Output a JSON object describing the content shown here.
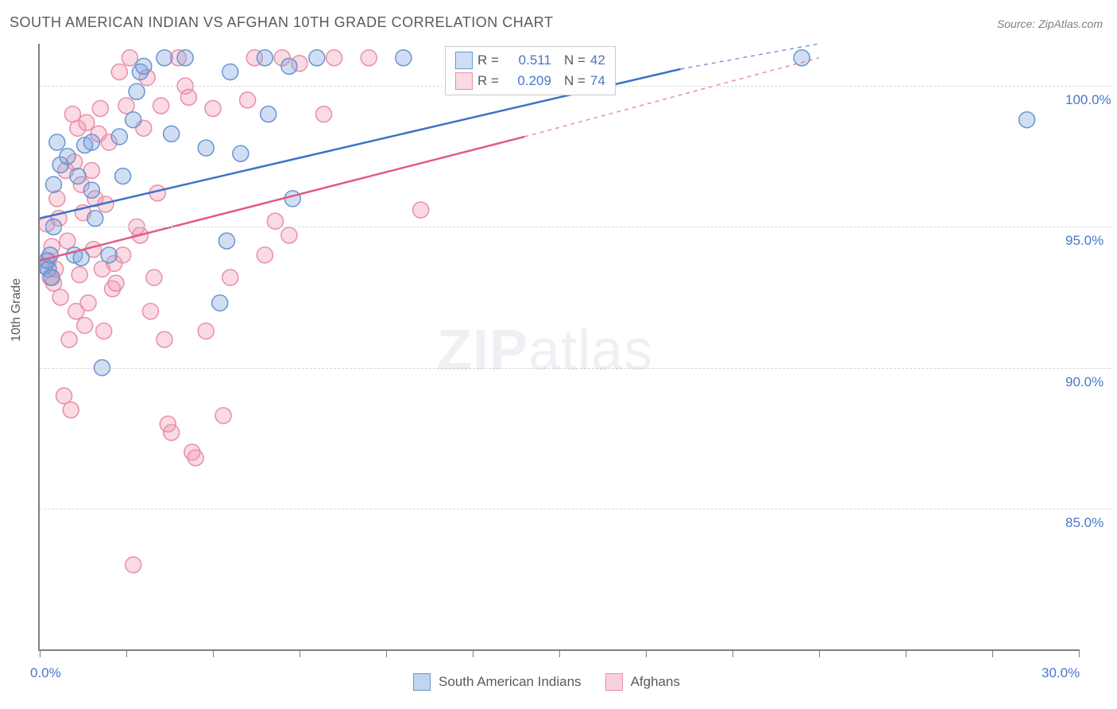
{
  "chart": {
    "type": "scatter",
    "title": "SOUTH AMERICAN INDIAN VS AFGHAN 10TH GRADE CORRELATION CHART",
    "source": "Source: ZipAtlas.com",
    "ylabel": "10th Grade",
    "watermark": {
      "zip": "ZIP",
      "atlas": "atlas"
    },
    "background_color": "#ffffff",
    "axis_color": "#808080",
    "grid_color": "#d8d8d8",
    "label_color": "#5a5a5a",
    "tick_label_color": "#4a76c7",
    "xlim": [
      0,
      30
    ],
    "ylim": [
      80,
      101.5
    ],
    "xticks": [
      0,
      2.5,
      5,
      7.5,
      10,
      12.5,
      15,
      17.5,
      20,
      22.5,
      25,
      27.5,
      30
    ],
    "xtick_labels": {
      "0": "0.0%",
      "30": "30.0%"
    },
    "yticks": [
      85,
      90,
      95,
      100
    ],
    "ytick_labels": {
      "85": "85.0%",
      "90": "90.0%",
      "95": "95.0%",
      "100": "100.0%"
    },
    "marker_radius": 10,
    "series": [
      {
        "name": "South American Indians",
        "fill_color": "rgba(120,160,220,0.35)",
        "stroke_color": "#6b94cf",
        "line_color": "#3b74c5",
        "line_width": 2.5,
        "R": "0.511",
        "N": "42",
        "trend": {
          "x1": 0,
          "y1": 95.3,
          "x2_solid": 18.5,
          "y2_solid": 100.6,
          "x2_dash": 22.5,
          "y2_dash": 101.5
        },
        "points": [
          [
            0.15,
            93.6
          ],
          [
            0.2,
            93.8
          ],
          [
            0.25,
            93.5
          ],
          [
            0.3,
            94.0
          ],
          [
            0.35,
            93.2
          ],
          [
            0.4,
            95.0
          ],
          [
            0.6,
            97.2
          ],
          [
            0.8,
            97.5
          ],
          [
            0.5,
            98.0
          ],
          [
            0.4,
            96.5
          ],
          [
            1.0,
            94.0
          ],
          [
            1.1,
            96.8
          ],
          [
            1.3,
            97.9
          ],
          [
            1.5,
            98.0
          ],
          [
            1.5,
            96.3
          ],
          [
            1.2,
            93.9
          ],
          [
            1.6,
            95.3
          ],
          [
            1.8,
            90.0
          ],
          [
            2.0,
            94.0
          ],
          [
            2.3,
            98.2
          ],
          [
            2.4,
            96.8
          ],
          [
            2.7,
            98.8
          ],
          [
            2.8,
            99.8
          ],
          [
            2.9,
            100.5
          ],
          [
            3.0,
            100.7
          ],
          [
            3.6,
            101.0
          ],
          [
            3.8,
            98.3
          ],
          [
            4.2,
            101.0
          ],
          [
            4.8,
            97.8
          ],
          [
            5.2,
            92.3
          ],
          [
            5.4,
            94.5
          ],
          [
            5.5,
            100.5
          ],
          [
            5.8,
            97.6
          ],
          [
            6.5,
            101.0
          ],
          [
            6.6,
            99.0
          ],
          [
            7.2,
            100.7
          ],
          [
            7.3,
            96.0
          ],
          [
            8.0,
            101.0
          ],
          [
            10.5,
            101.0
          ],
          [
            13.5,
            101.0
          ],
          [
            22.0,
            101.0
          ],
          [
            28.5,
            98.8
          ]
        ]
      },
      {
        "name": "Afghans",
        "fill_color": "rgba(240,150,175,0.35)",
        "stroke_color": "#e88fa8",
        "line_color": "#e15a87",
        "line_width": 2.5,
        "R": "0.209",
        "N": "74",
        "trend": {
          "x1": 0,
          "y1": 93.8,
          "x2_solid": 14.0,
          "y2_solid": 98.2,
          "x2_dash": 22.5,
          "y2_dash": 101.0
        },
        "points": [
          [
            0.2,
            95.1
          ],
          [
            0.25,
            93.8
          ],
          [
            0.3,
            93.2
          ],
          [
            0.35,
            94.3
          ],
          [
            0.4,
            93.0
          ],
          [
            0.45,
            93.5
          ],
          [
            0.5,
            96.0
          ],
          [
            0.55,
            95.3
          ],
          [
            0.6,
            92.5
          ],
          [
            0.7,
            89.0
          ],
          [
            0.75,
            97.0
          ],
          [
            0.8,
            94.5
          ],
          [
            0.85,
            91.0
          ],
          [
            0.9,
            88.5
          ],
          [
            0.95,
            99.0
          ],
          [
            1.0,
            97.3
          ],
          [
            1.05,
            92.0
          ],
          [
            1.1,
            98.5
          ],
          [
            1.15,
            93.3
          ],
          [
            1.2,
            96.5
          ],
          [
            1.25,
            95.5
          ],
          [
            1.3,
            91.5
          ],
          [
            1.35,
            98.7
          ],
          [
            1.4,
            92.3
          ],
          [
            1.5,
            97.0
          ],
          [
            1.55,
            94.2
          ],
          [
            1.6,
            96.0
          ],
          [
            1.7,
            98.3
          ],
          [
            1.75,
            99.2
          ],
          [
            1.8,
            93.5
          ],
          [
            1.85,
            91.3
          ],
          [
            1.9,
            95.8
          ],
          [
            2.0,
            98.0
          ],
          [
            2.1,
            92.8
          ],
          [
            2.15,
            93.7
          ],
          [
            2.2,
            93.0
          ],
          [
            2.3,
            100.5
          ],
          [
            2.4,
            94.0
          ],
          [
            2.5,
            99.3
          ],
          [
            2.6,
            101.0
          ],
          [
            2.7,
            83.0
          ],
          [
            2.8,
            95.0
          ],
          [
            2.9,
            94.7
          ],
          [
            3.0,
            98.5
          ],
          [
            3.1,
            100.3
          ],
          [
            3.2,
            92.0
          ],
          [
            3.3,
            93.2
          ],
          [
            3.4,
            96.2
          ],
          [
            3.5,
            99.3
          ],
          [
            3.6,
            91.0
          ],
          [
            3.7,
            88.0
          ],
          [
            3.8,
            87.7
          ],
          [
            4.0,
            101.0
          ],
          [
            4.2,
            100.0
          ],
          [
            4.3,
            99.6
          ],
          [
            4.4,
            87.0
          ],
          [
            4.5,
            86.8
          ],
          [
            4.8,
            91.3
          ],
          [
            5.0,
            99.2
          ],
          [
            5.3,
            88.3
          ],
          [
            5.5,
            93.2
          ],
          [
            6.0,
            99.5
          ],
          [
            6.2,
            101.0
          ],
          [
            6.5,
            94.0
          ],
          [
            6.8,
            95.2
          ],
          [
            7.0,
            101.0
          ],
          [
            7.2,
            94.7
          ],
          [
            7.5,
            100.8
          ],
          [
            8.2,
            99.0
          ],
          [
            8.5,
            101.0
          ],
          [
            9.5,
            101.0
          ],
          [
            11.0,
            95.6
          ],
          [
            13.8,
            101.0
          ],
          [
            14.0,
            101.0
          ]
        ]
      }
    ],
    "legend_top": {
      "r_label": "R =",
      "n_label": "N ="
    },
    "legend_bottom": [
      {
        "label": "South American Indians",
        "fill": "rgba(120,160,220,0.45)",
        "stroke": "#6b94cf"
      },
      {
        "label": "Afghans",
        "fill": "rgba(240,150,175,0.45)",
        "stroke": "#e88fa8"
      }
    ]
  }
}
